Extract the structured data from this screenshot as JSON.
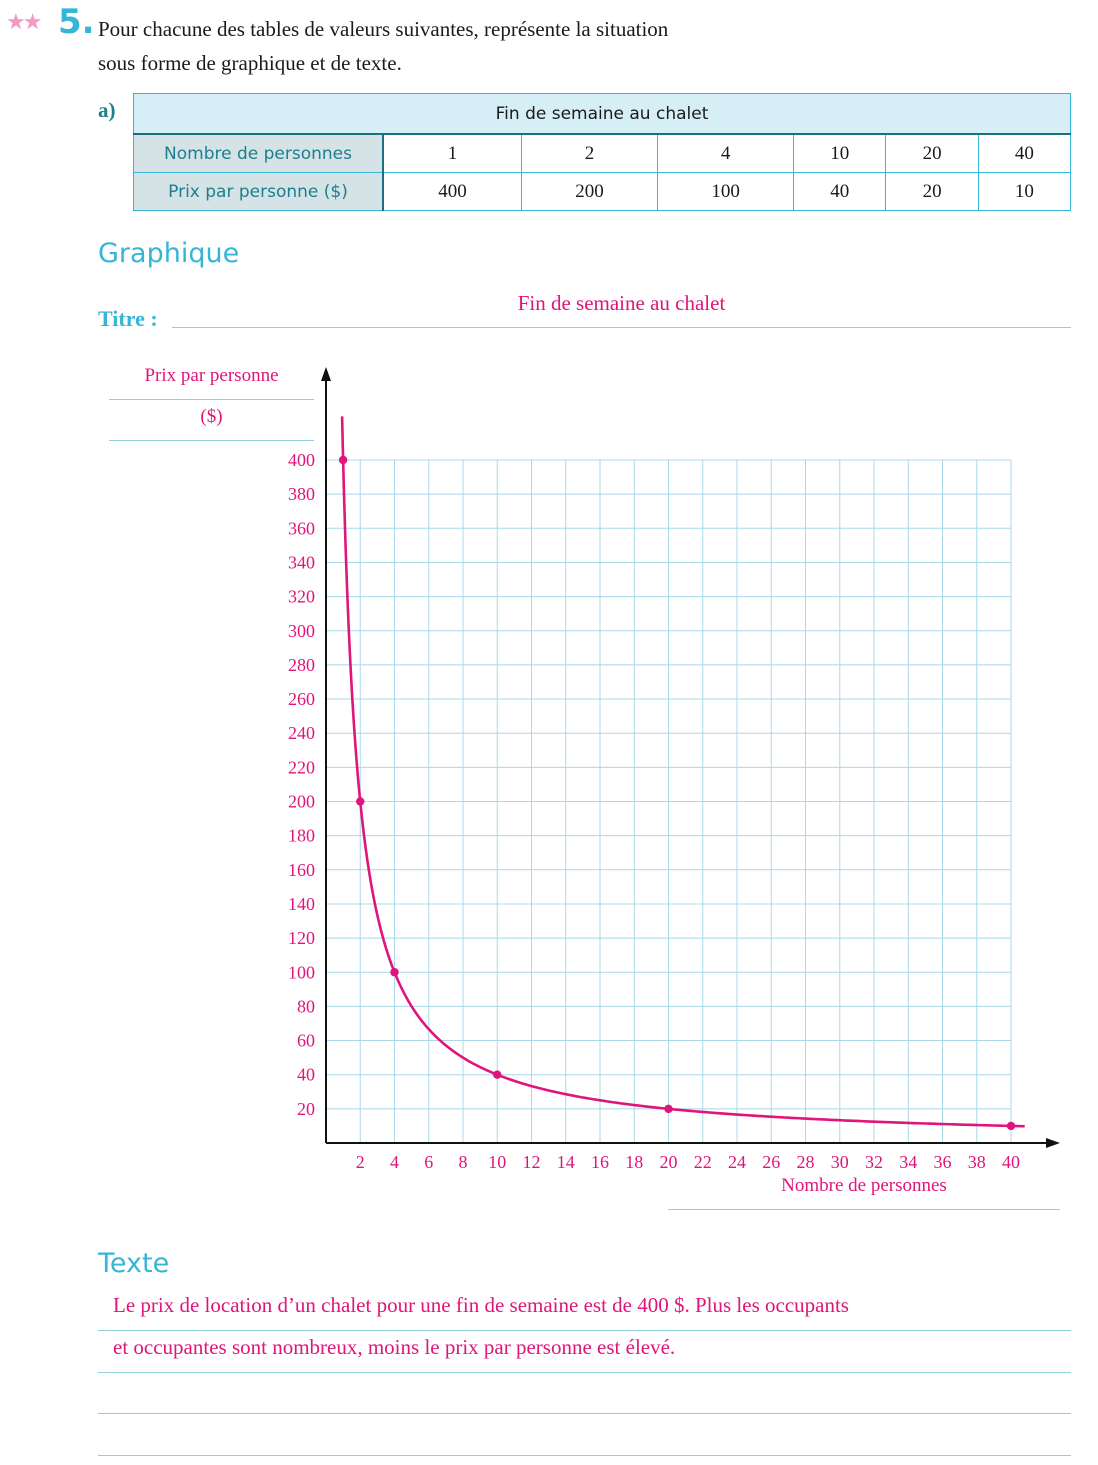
{
  "exercise": {
    "stars": "★★",
    "number": "5.",
    "instruction_line1": "Pour chacune des tables de valeurs suivantes, représente la situation",
    "instruction_line2": "sous forme de graphique et de texte.",
    "part": "a)"
  },
  "table": {
    "title": "Fin de semaine au chalet",
    "row1_label": "Nombre de personnes",
    "row1_values": [
      "1",
      "2",
      "4",
      "10",
      "20",
      "40"
    ],
    "row2_label": "Prix par personne ($)",
    "row2_values": [
      "400",
      "200",
      "100",
      "40",
      "20",
      "10"
    ]
  },
  "graph_section": {
    "heading": "Graphique",
    "title_label": "Titre :",
    "title_answer": "Fin de semaine au chalet"
  },
  "chart_data": {
    "type": "line",
    "title": "Fin de semaine au chalet",
    "ylabel_line1": "Prix par personne",
    "ylabel_line2": "($)",
    "xlabel": "Nombre de personnes",
    "x_ticks": [
      2,
      4,
      6,
      8,
      10,
      12,
      14,
      16,
      18,
      20,
      22,
      24,
      26,
      28,
      30,
      32,
      34,
      36,
      38,
      40
    ],
    "y_ticks": [
      20,
      40,
      60,
      80,
      100,
      120,
      140,
      160,
      180,
      200,
      220,
      240,
      260,
      280,
      300,
      320,
      340,
      360,
      380,
      400
    ],
    "xlim": [
      0,
      40
    ],
    "ylim": [
      0,
      400
    ],
    "grid": true,
    "series": [
      {
        "points": [
          [
            1,
            400
          ],
          [
            2,
            200
          ],
          [
            4,
            100
          ],
          [
            10,
            40
          ],
          [
            20,
            20
          ],
          [
            40,
            10
          ]
        ],
        "curve": "y = 400 / x",
        "color": "#e0147a"
      }
    ]
  },
  "text_section": {
    "heading": "Texte",
    "answer_line1": "Le prix de location d’un chalet pour une fin de semaine est de 400 $. Plus les occupants",
    "answer_line2": "et occupantes sont nombreux, moins le prix par personne est élevé."
  }
}
